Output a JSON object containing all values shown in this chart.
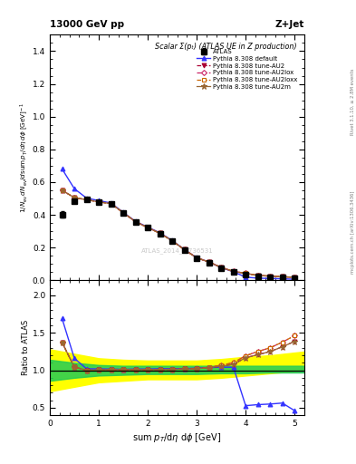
{
  "title_top": "13000 GeV pp",
  "title_right": "Z+Jet",
  "plot_title": "Scalar Σ(pₜ) (ATLAS UE in Z production)",
  "ylabel_main": "1/N_ev dN_ev/dsum p_T/dη dφ  [GeV]",
  "ylabel_ratio": "Ratio to ATLAS",
  "xlabel": "sum pₜ/dη dφ [GeV]",
  "right_label": "mcplots.cern.ch [arXiv:1306.3436]",
  "right_label2": "Rivet 3.1.10, ≥ 2.8M events",
  "watermark": "ATLAS_2014_I1736531",
  "x_data": [
    0.25,
    0.5,
    0.75,
    1.0,
    1.25,
    1.5,
    1.75,
    2.0,
    2.25,
    2.5,
    2.75,
    3.0,
    3.25,
    3.5,
    3.75,
    4.0,
    4.25,
    4.5,
    4.75,
    5.0
  ],
  "atlas_y": [
    0.402,
    0.484,
    0.492,
    0.478,
    0.464,
    0.41,
    0.354,
    0.32,
    0.284,
    0.238,
    0.184,
    0.134,
    0.108,
    0.074,
    0.05,
    0.036,
    0.024,
    0.02,
    0.016,
    0.013
  ],
  "atlas_yerr": [
    0.02,
    0.01,
    0.01,
    0.01,
    0.01,
    0.01,
    0.008,
    0.008,
    0.007,
    0.006,
    0.005,
    0.005,
    0.004,
    0.003,
    0.003,
    0.002,
    0.002,
    0.002,
    0.001,
    0.001
  ],
  "default_y": [
    0.68,
    0.56,
    0.502,
    0.487,
    0.472,
    0.415,
    0.36,
    0.325,
    0.29,
    0.243,
    0.188,
    0.138,
    0.112,
    0.077,
    0.052,
    0.019,
    0.013,
    0.011,
    0.009,
    0.006
  ],
  "au2_y": [
    0.55,
    0.505,
    0.492,
    0.479,
    0.468,
    0.413,
    0.358,
    0.322,
    0.287,
    0.241,
    0.187,
    0.137,
    0.112,
    0.078,
    0.054,
    0.042,
    0.029,
    0.025,
    0.021,
    0.018
  ],
  "au2lox_y": [
    0.55,
    0.505,
    0.492,
    0.479,
    0.468,
    0.413,
    0.358,
    0.322,
    0.287,
    0.241,
    0.187,
    0.137,
    0.112,
    0.079,
    0.055,
    0.043,
    0.03,
    0.026,
    0.022,
    0.019
  ],
  "au2loxx_y": [
    0.55,
    0.505,
    0.492,
    0.479,
    0.468,
    0.413,
    0.358,
    0.322,
    0.287,
    0.241,
    0.187,
    0.137,
    0.112,
    0.079,
    0.055,
    0.043,
    0.03,
    0.026,
    0.022,
    0.019
  ],
  "au2m_y": [
    0.55,
    0.505,
    0.492,
    0.479,
    0.468,
    0.413,
    0.358,
    0.322,
    0.287,
    0.241,
    0.187,
    0.137,
    0.112,
    0.078,
    0.054,
    0.042,
    0.029,
    0.025,
    0.021,
    0.018
  ],
  "ratio_default": [
    1.69,
    1.16,
    1.02,
    1.018,
    1.017,
    1.012,
    1.017,
    1.016,
    1.021,
    1.021,
    1.022,
    1.03,
    1.037,
    1.041,
    1.04,
    0.528,
    0.542,
    0.55,
    0.563,
    0.462
  ],
  "ratio_au2": [
    1.37,
    1.044,
    1.0,
    1.002,
    1.009,
    1.007,
    1.011,
    1.006,
    1.011,
    1.013,
    1.016,
    1.022,
    1.037,
    1.054,
    1.08,
    1.167,
    1.208,
    1.25,
    1.313,
    1.385
  ],
  "ratio_au2lox": [
    1.37,
    1.044,
    1.0,
    1.002,
    1.009,
    1.007,
    1.011,
    1.006,
    1.011,
    1.013,
    1.016,
    1.022,
    1.037,
    1.068,
    1.1,
    1.194,
    1.25,
    1.3,
    1.375,
    1.462
  ],
  "ratio_au2loxx": [
    1.37,
    1.044,
    1.0,
    1.002,
    1.009,
    1.007,
    1.011,
    1.006,
    1.011,
    1.013,
    1.016,
    1.022,
    1.037,
    1.068,
    1.1,
    1.194,
    1.25,
    1.3,
    1.375,
    1.462
  ],
  "ratio_au2m": [
    1.37,
    1.044,
    1.0,
    1.002,
    1.009,
    1.007,
    1.011,
    1.006,
    1.011,
    1.013,
    1.016,
    1.022,
    1.037,
    1.054,
    1.08,
    1.167,
    1.208,
    1.25,
    1.313,
    1.385
  ],
  "color_default": "#3333ff",
  "color_au2": "#aa0033",
  "color_au2lox": "#cc2266",
  "color_au2loxx": "#cc6600",
  "color_au2m": "#996633",
  "band_x": [
    0.0,
    0.5,
    1.0,
    1.5,
    2.0,
    2.5,
    3.0,
    3.5,
    4.0,
    4.5,
    5.2
  ],
  "band_yellow_lo": [
    0.72,
    0.78,
    0.84,
    0.86,
    0.88,
    0.88,
    0.88,
    0.9,
    0.93,
    0.96,
    1.0
  ],
  "band_yellow_hi": [
    1.28,
    1.22,
    1.16,
    1.14,
    1.13,
    1.13,
    1.13,
    1.15,
    1.18,
    1.2,
    1.25
  ],
  "band_green_lo": [
    0.86,
    0.9,
    0.93,
    0.94,
    0.95,
    0.95,
    0.95,
    0.96,
    0.96,
    0.97,
    0.97
  ],
  "band_green_hi": [
    1.14,
    1.1,
    1.07,
    1.06,
    1.06,
    1.06,
    1.06,
    1.06,
    1.06,
    1.06,
    1.06
  ],
  "ylim_main": [
    0.0,
    1.5
  ],
  "ylim_ratio": [
    0.4,
    2.2
  ],
  "xlim": [
    0.0,
    5.2
  ],
  "yticks_main": [
    0.0,
    0.2,
    0.4,
    0.6,
    0.8,
    1.0,
    1.2,
    1.4
  ],
  "yticks_ratio": [
    0.5,
    1.0,
    1.5,
    2.0
  ]
}
